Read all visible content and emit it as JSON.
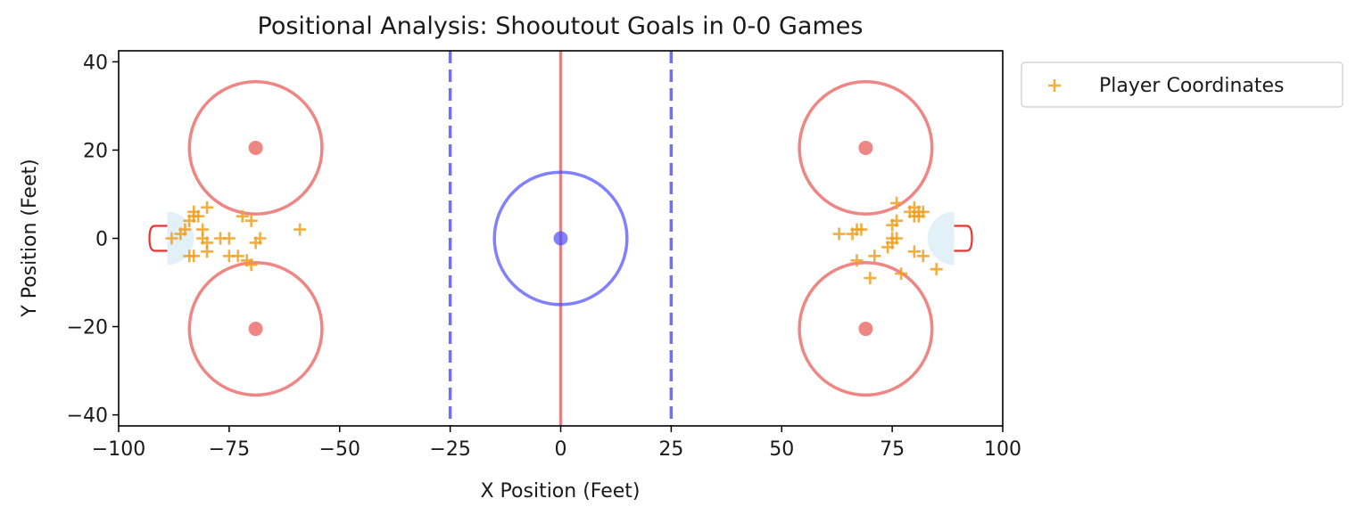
{
  "chart_data": {
    "type": "scatter",
    "title": "Positional Analysis: Shooutout Goals in 0-0 Games",
    "xlabel": "X Position (Feet)",
    "ylabel": "Y Position (Feet)",
    "xlim": [
      -100,
      100
    ],
    "ylim": [
      -42.5,
      42.5
    ],
    "xticks": [
      -100,
      -75,
      -50,
      -25,
      0,
      25,
      50,
      75,
      100
    ],
    "xtick_labels": [
      "−100",
      "−75",
      "−50",
      "−25",
      "0",
      "25",
      "50",
      "75",
      "100"
    ],
    "yticks": [
      -40,
      -20,
      0,
      20,
      40
    ],
    "ytick_labels": [
      "−40",
      "−20",
      "0",
      "20",
      "40"
    ],
    "grid": false,
    "legend": {
      "placement": "outside-top-right",
      "entries": [
        "Player Coordinates"
      ]
    },
    "colors": {
      "points": "#f0a020",
      "red_elements": "#e8534f",
      "blue_elements": "#4b4bff",
      "crease": "#d6e9f5"
    },
    "rink": {
      "center_line_x": 0,
      "blue_lines_x": [
        -25,
        25
      ],
      "center_circle": {
        "x": 0,
        "y": 0,
        "r": 15
      },
      "faceoff_circles": [
        {
          "x": -69,
          "y": 20.5,
          "r": 15
        },
        {
          "x": -69,
          "y": -20.5,
          "r": 15
        },
        {
          "x": 69,
          "y": 20.5,
          "r": 15
        },
        {
          "x": 69,
          "y": -20.5,
          "r": 15
        }
      ],
      "goal_x": [
        -89,
        89
      ],
      "crease_radius": 6
    },
    "series": [
      {
        "name": "Player Coordinates",
        "marker": "+",
        "points": [
          [
            -88,
            0
          ],
          [
            -86,
            1
          ],
          [
            -85,
            2
          ],
          [
            -84,
            4
          ],
          [
            -83,
            5
          ],
          [
            -83,
            6
          ],
          [
            -82,
            5
          ],
          [
            -81,
            2
          ],
          [
            -80,
            7
          ],
          [
            -81,
            0
          ],
          [
            -80,
            -1
          ],
          [
            -80,
            -3
          ],
          [
            -84,
            -4
          ],
          [
            -83,
            -4
          ],
          [
            -77,
            0
          ],
          [
            -75,
            0
          ],
          [
            -75,
            -4
          ],
          [
            -73,
            -4
          ],
          [
            -71,
            -5
          ],
          [
            -70,
            -6
          ],
          [
            -72,
            5
          ],
          [
            -70,
            4
          ],
          [
            -68,
            0
          ],
          [
            -69,
            -1
          ],
          [
            -59,
            2
          ],
          [
            63,
            1
          ],
          [
            66,
            1
          ],
          [
            67,
            2
          ],
          [
            68,
            2
          ],
          [
            67,
            -5
          ],
          [
            71,
            -4
          ],
          [
            70,
            -9
          ],
          [
            74,
            -2
          ],
          [
            75,
            -1
          ],
          [
            75,
            0
          ],
          [
            76,
            0
          ],
          [
            75,
            3
          ],
          [
            76,
            4
          ],
          [
            76,
            8
          ],
          [
            79,
            6
          ],
          [
            80,
            7
          ],
          [
            80,
            5
          ],
          [
            81,
            6
          ],
          [
            82,
            6
          ],
          [
            81,
            5
          ],
          [
            77,
            -8
          ],
          [
            80,
            -3
          ],
          [
            82,
            -4
          ],
          [
            85,
            -7
          ]
        ]
      }
    ]
  }
}
